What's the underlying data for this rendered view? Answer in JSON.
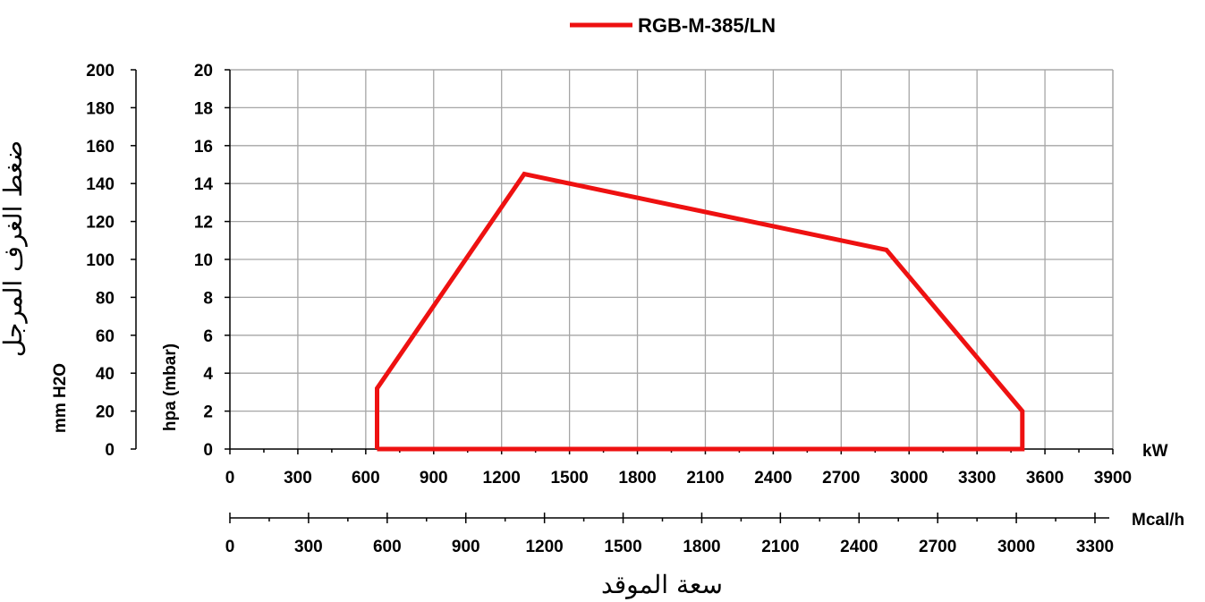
{
  "chart_data": {
    "type": "line",
    "legend": {
      "position": "top-center"
    },
    "series": [
      {
        "name": "RGB-M-385/LN",
        "color": "#ee1111",
        "x": [
          650,
          650,
          1300,
          2900,
          3500,
          3500,
          650
        ],
        "y": [
          0,
          3.2,
          14.5,
          10.5,
          2,
          0,
          0
        ]
      }
    ],
    "x_axis_kw": {
      "unit_label": "kW",
      "ticks": [
        "0",
        "300",
        "600",
        "900",
        "1200",
        "1500",
        "1800",
        "2100",
        "2400",
        "2700",
        "3000",
        "3300",
        "3600",
        "3900"
      ],
      "range": [
        0,
        3900
      ],
      "grid": true
    },
    "x_axis_mcal": {
      "unit_label": "Mcal/h",
      "ticks": [
        "0",
        "300",
        "600",
        "900",
        "1200",
        "1500",
        "1800",
        "2100",
        "2400",
        "2700",
        "3000",
        "3300"
      ],
      "range": [
        0,
        3300
      ]
    },
    "x_axis_title": "سعة الموقد",
    "y_axis_hpa": {
      "label": "hpa (mbar)",
      "ticks": [
        "0",
        "2",
        "4",
        "6",
        "8",
        "10",
        "12",
        "14",
        "16",
        "18",
        "20"
      ],
      "range": [
        0,
        20
      ],
      "grid": true
    },
    "y_axis_mm": {
      "label": "mm H2O",
      "ticks": [
        "0",
        "20",
        "40",
        "60",
        "80",
        "100",
        "120",
        "140",
        "160",
        "180",
        "200"
      ],
      "range": [
        0,
        200
      ]
    },
    "y_axis_title": "ضغط الغرف المرجل"
  }
}
